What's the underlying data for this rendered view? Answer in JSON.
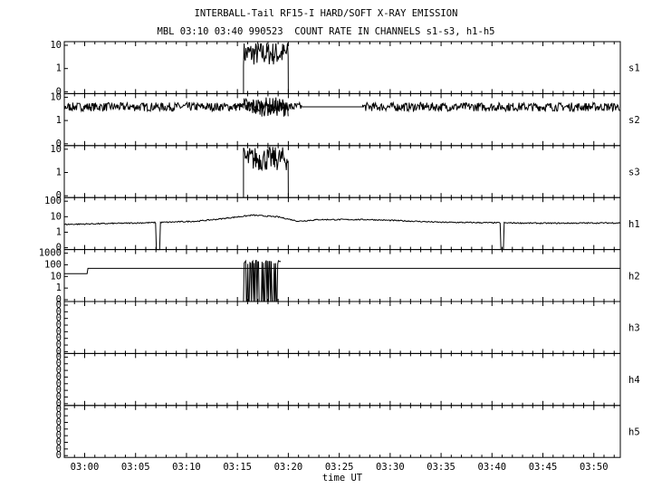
{
  "title": "INTERBALL-Tail RF15-I HARD/SOFT X-RAY EMISSION",
  "subtitle": "MBL 03:10 03:40 990523  COUNT RATE IN CHANNELS s1-s3, h1-h5",
  "xlabel": "time UT",
  "chart_data": {
    "type": "line",
    "title": "INTERBALL-Tail RF15-I HARD/SOFT X-RAY EMISSION",
    "subtitle": "MBL 03:10 03:40 990523  COUNT RATE IN CHANNELS s1-s3, h1-h5",
    "xlabel": "time UT",
    "x_ticks": [
      "03:00",
      "03:05",
      "03:10",
      "03:15",
      "03:20",
      "03:25",
      "03:30",
      "03:35",
      "03:40",
      "03:45",
      "03:50"
    ],
    "x_range_min": [
      -2.0,
      52.6
    ],
    "colors": {
      "line": "#000000",
      "background": "#ffffff"
    },
    "panels": [
      {
        "name": "s1",
        "scale": "log",
        "ticks": [
          "0",
          "1",
          "10"
        ],
        "ylim": [
          0.1,
          10
        ],
        "segments": [
          {
            "x": [
              15.6,
              20.0
            ],
            "y": [
              4.5,
              4.5
            ],
            "noise": 0.5,
            "floor_edges": true
          }
        ]
      },
      {
        "name": "s2",
        "scale": "log",
        "ticks": [
          "0",
          "1",
          "10"
        ],
        "ylim": [
          0.1,
          10
        ],
        "segments": [
          {
            "x": [
              -2.0,
              21.3
            ],
            "y": [
              4.0,
              4.0
            ],
            "noise": 0.18
          },
          {
            "x": [
              21.3,
              27.3
            ],
            "y": [
              4.0,
              4.0
            ],
            "noise": 0.0
          },
          {
            "x": [
              27.3,
              52.6
            ],
            "y": [
              4.0,
              4.0
            ],
            "noise": 0.18
          }
        ],
        "bursts": [
          {
            "x": [
              15.6,
              20.0
            ],
            "noise": 0.4
          }
        ]
      },
      {
        "name": "s3",
        "scale": "log",
        "ticks": [
          "0",
          "1",
          "10"
        ],
        "ylim": [
          0.1,
          10
        ],
        "segments": [
          {
            "x": [
              15.6,
              20.0
            ],
            "y": [
              4.0,
              4.0
            ],
            "noise": 0.5,
            "floor_edges": true
          }
        ]
      },
      {
        "name": "h1",
        "scale": "log",
        "ticks": [
          "0",
          "1",
          "10",
          "100"
        ],
        "ylim": [
          0.1,
          1000
        ],
        "profile": [
          [
            -2.0,
            12
          ],
          [
            2.0,
            14
          ],
          [
            7.0,
            17
          ],
          [
            11.0,
            22
          ],
          [
            13.0,
            32
          ],
          [
            16.5,
            70
          ],
          [
            19.0,
            50
          ],
          [
            21.0,
            22
          ],
          [
            23.0,
            30
          ],
          [
            28.0,
            30
          ],
          [
            35.0,
            18
          ],
          [
            45.0,
            15
          ],
          [
            52.6,
            16
          ]
        ],
        "noise": 0.05,
        "dips": [
          7.2,
          41.0
        ]
      },
      {
        "name": "h2",
        "scale": "log",
        "ticks": [
          "0",
          "1",
          "10",
          "100",
          "1000"
        ],
        "ylim": [
          0.1,
          1000
        ],
        "profile": [
          [
            -2.0,
            20
          ],
          [
            0.3,
            20
          ],
          [
            0.3,
            55
          ],
          [
            52.6,
            55
          ]
        ],
        "noise": 0.0,
        "spikes": {
          "x": [
            15.6,
            19.3
          ],
          "top": 180,
          "floor": 0.1
        }
      },
      {
        "name": "h3",
        "scale": "log",
        "ticks": [
          "0",
          "0",
          "0",
          "0",
          "0",
          "0",
          "0",
          "0"
        ],
        "ylim": [
          0.1,
          1
        ],
        "empty": true
      },
      {
        "name": "h4",
        "scale": "log",
        "ticks": [
          "0",
          "0",
          "0",
          "0",
          "0",
          "0",
          "0",
          "0"
        ],
        "ylim": [
          0.1,
          1
        ],
        "empty": true
      },
      {
        "name": "h5",
        "scale": "log",
        "ticks": [
          "0",
          "0",
          "0",
          "0",
          "0",
          "0",
          "0",
          "0"
        ],
        "ylim": [
          0.1,
          1
        ],
        "empty": true
      }
    ]
  }
}
